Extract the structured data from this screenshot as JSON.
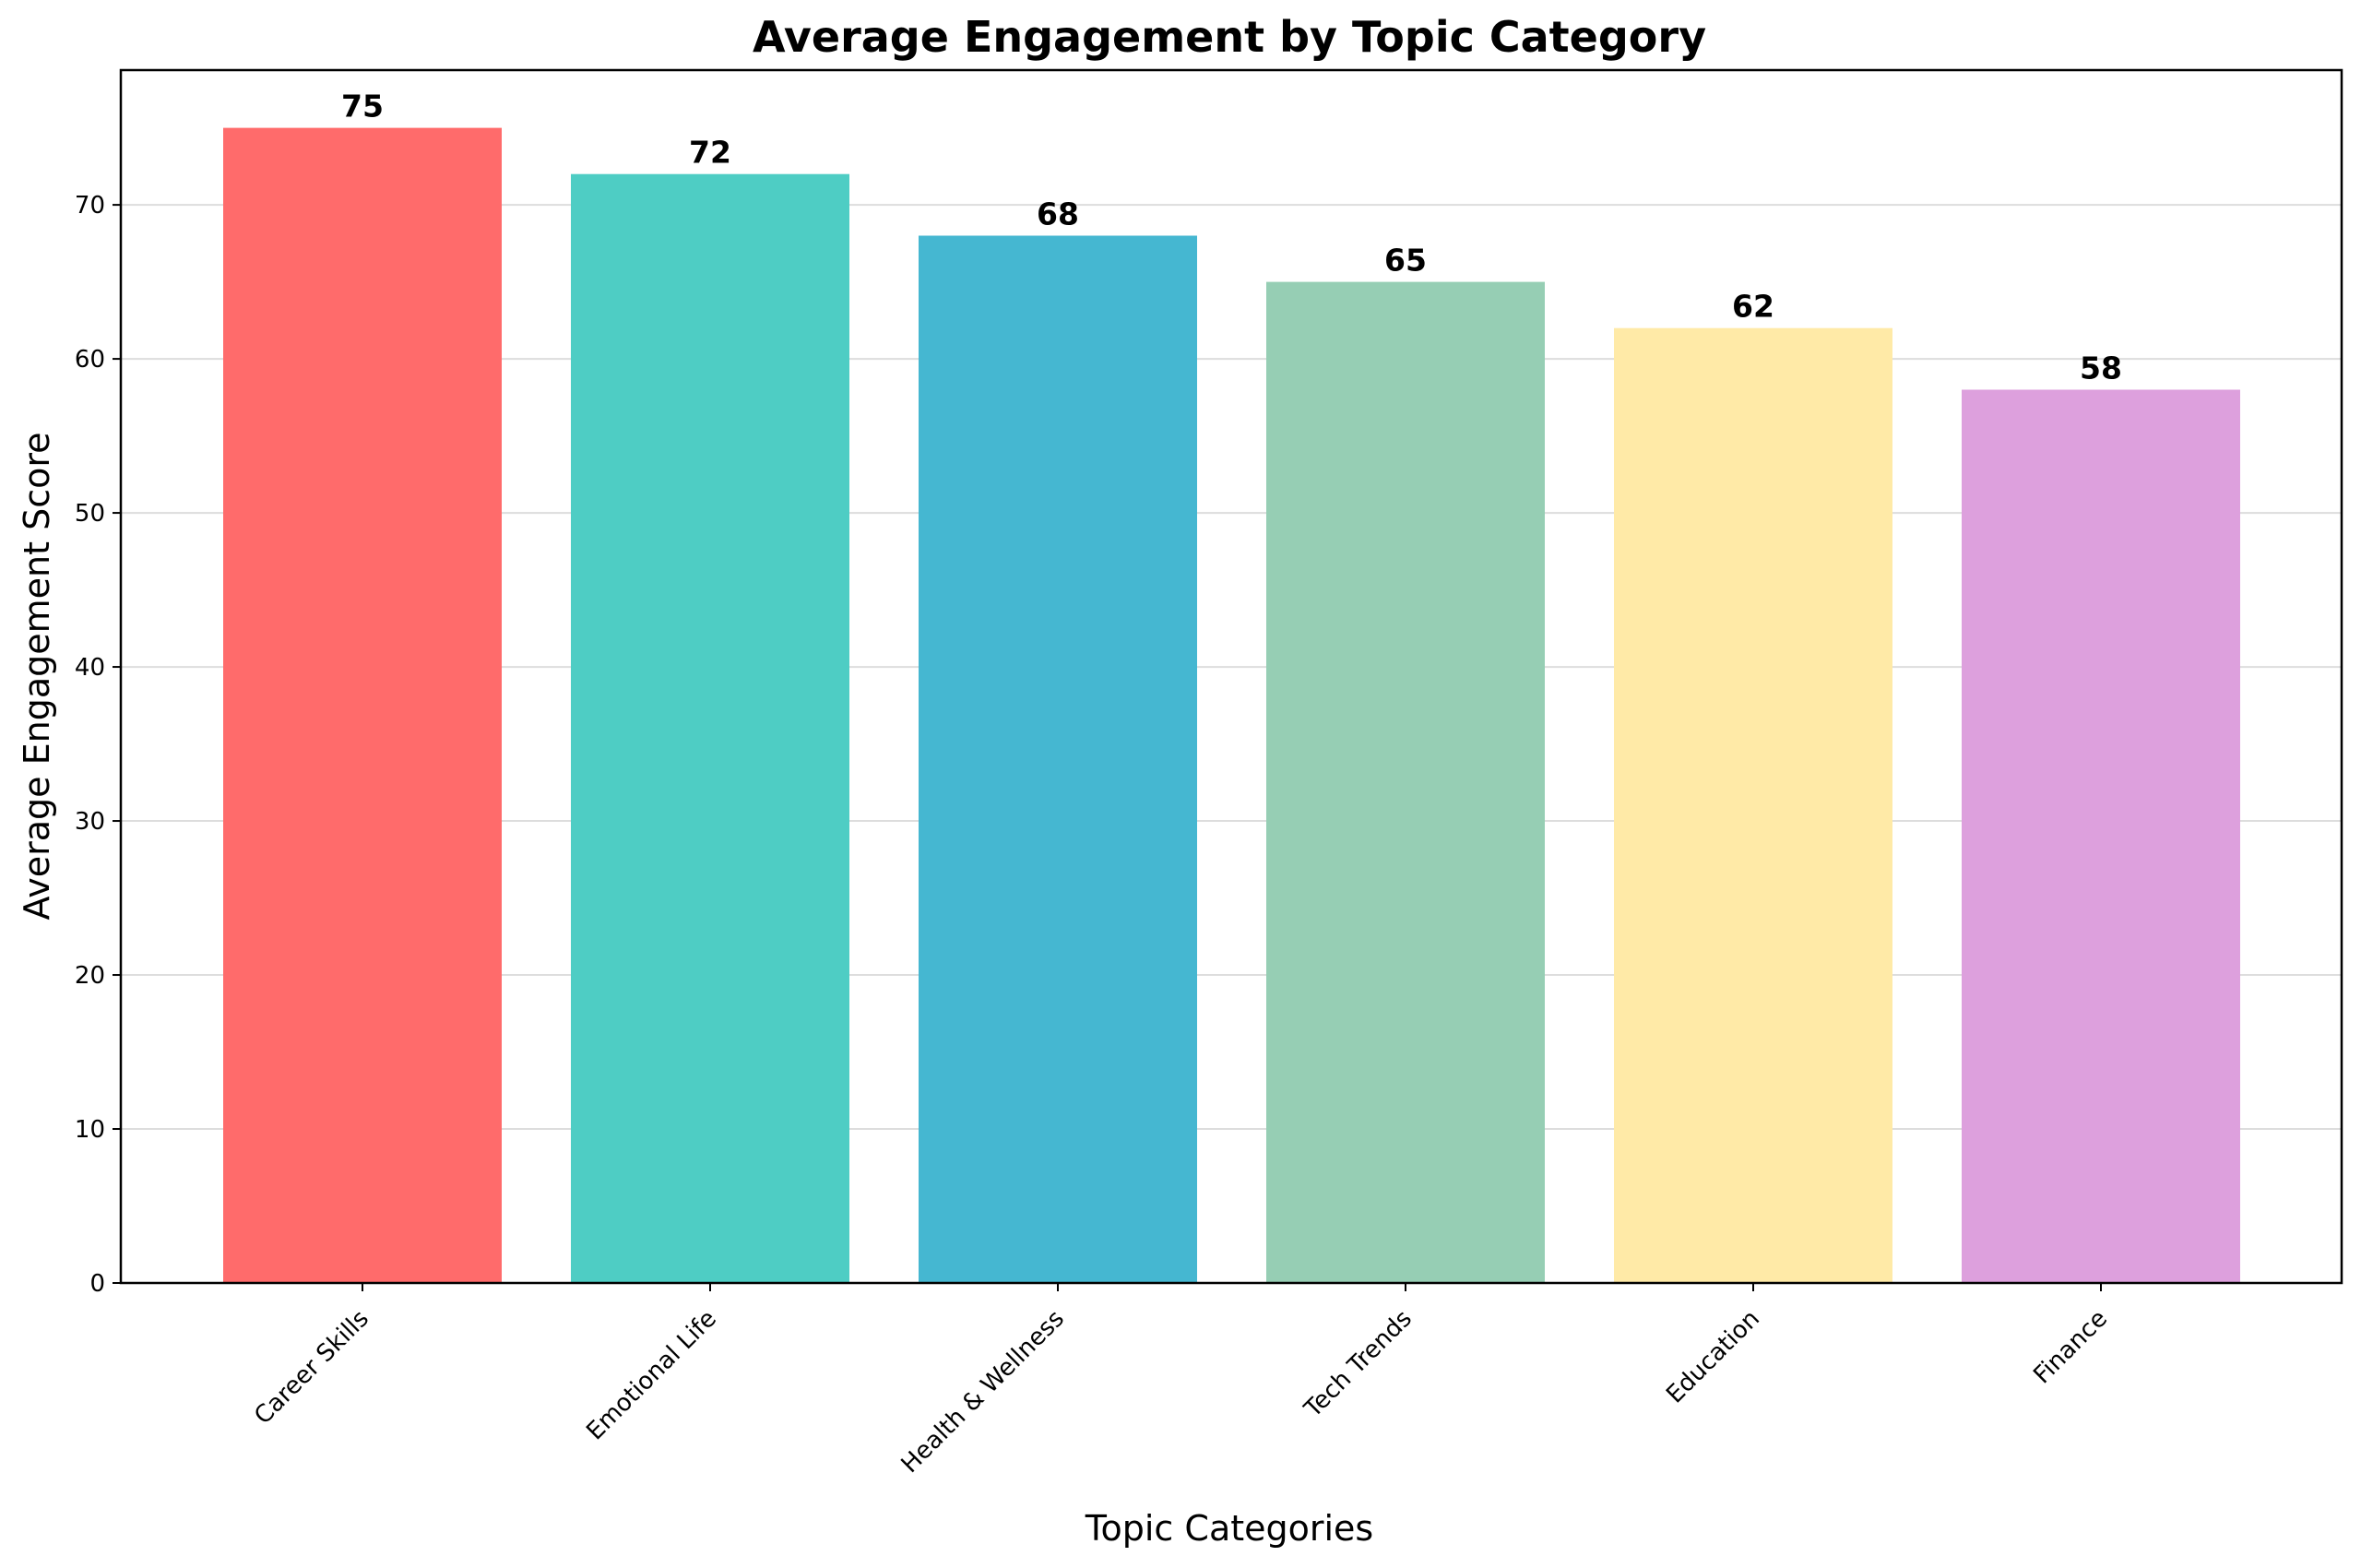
{
  "chart_data": {
    "type": "bar",
    "title": "Average Engagement by Topic Category",
    "xlabel": "Topic Categories",
    "ylabel": "Average Engagement Score",
    "categories": [
      "Career Skills",
      "Emotional Life",
      "Health & Wellness",
      "Tech Trends",
      "Education",
      "Finance"
    ],
    "values": [
      75,
      72,
      68,
      65,
      62,
      58
    ],
    "data_labels": [
      "75",
      "72",
      "68",
      "65",
      "62",
      "58"
    ],
    "colors": [
      "#FF6B6B",
      "#4ECDC4",
      "#45B7D1",
      "#96CEB4",
      "#FFEAA7",
      "#DDA0DD"
    ],
    "ylim": [
      0,
      78.75
    ],
    "yticks": [
      0,
      10,
      20,
      30,
      40,
      50,
      60,
      70
    ],
    "ytick_labels": [
      "0",
      "10",
      "20",
      "30",
      "40",
      "50",
      "60",
      "70"
    ],
    "grid": "y-axis horizontal lines",
    "legend": "none"
  }
}
